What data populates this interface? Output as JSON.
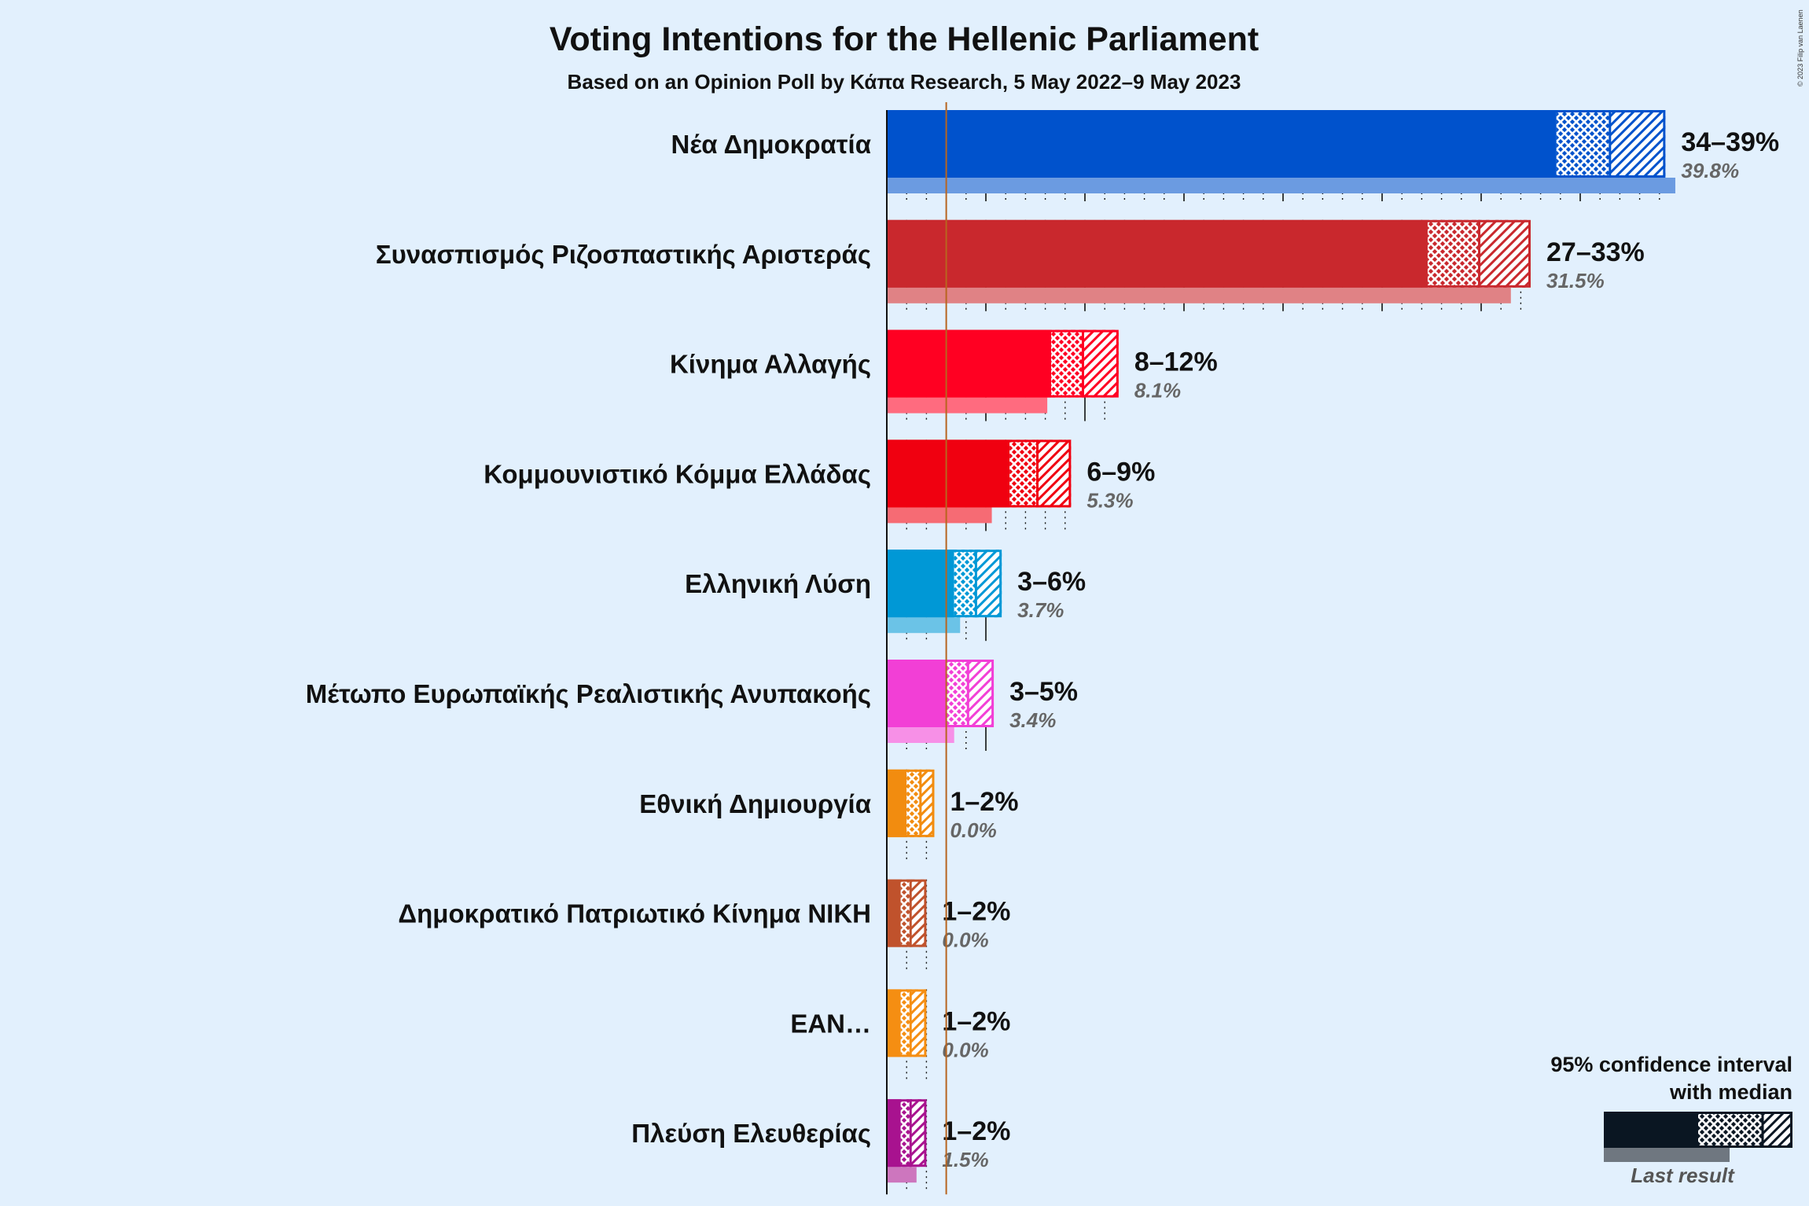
{
  "title": "Voting Intentions for the Hellenic Parliament",
  "subtitle": "Based on an Opinion Poll by Κάπα Research, 5 May 2022–9 May 2023",
  "copyright": "© 2023 Filip van Laenen",
  "legend": {
    "line1": "95% confidence interval",
    "line2": "with median",
    "last_result": "Last result",
    "color": "#0a1622"
  },
  "chart_data": {
    "type": "bar",
    "orientation": "horizontal",
    "threshold": 3,
    "xlim": [
      0,
      40
    ],
    "categories": [
      "Νέα Δημοκρατία",
      "Συνασπισμός Ριζοσπαστικής Αριστεράς",
      "Κίνημα Αλλαγής",
      "Κομμουνιστικό Κόμμα Ελλάδας",
      "Ελληνική Λύση",
      "Μέτωπο Ευρωπαϊκής Ρεαλιστικής Ανυπακοής",
      "Εθνική Δημιουργία",
      "Δημοκρατικό Πατριωτικό Κίνημα ΝΙΚΗ",
      "ΕΑΝ…",
      "Πλεύση Ελευθερίας"
    ],
    "series": [
      {
        "name": "Νέα Δημοκρατία",
        "color": "#0052cc",
        "ci_low": 33.8,
        "median": 36.5,
        "ci_high": 39.3,
        "range_label": "34–39%",
        "last_result": 39.8,
        "last_label": "39.8%"
      },
      {
        "name": "Συνασπισμός Ριζοσπαστικής Αριστεράς",
        "color": "#c9282d",
        "ci_low": 27.3,
        "median": 29.9,
        "ci_high": 32.5,
        "range_label": "27–33%",
        "last_result": 31.5,
        "last_label": "31.5%"
      },
      {
        "name": "Κίνημα Αλλαγής",
        "color": "#ff0022",
        "ci_low": 8.3,
        "median": 9.9,
        "ci_high": 11.7,
        "range_label": "8–12%",
        "last_result": 8.1,
        "last_label": "8.1%"
      },
      {
        "name": "Κομμουνιστικό Κόμμα Ελλάδας",
        "color": "#f00010",
        "ci_low": 6.2,
        "median": 7.6,
        "ci_high": 9.3,
        "range_label": "6–9%",
        "last_result": 5.3,
        "last_label": "5.3%"
      },
      {
        "name": "Ελληνική Λύση",
        "color": "#0098d6",
        "ci_low": 3.4,
        "median": 4.5,
        "ci_high": 5.8,
        "range_label": "3–6%",
        "last_result": 3.7,
        "last_label": "3.7%"
      },
      {
        "name": "Μέτωπο Ευρωπαϊκής Ρεαλιστικής Ανυπακοής",
        "color": "#f23fd6",
        "ci_low": 3.0,
        "median": 4.1,
        "ci_high": 5.4,
        "range_label": "3–5%",
        "last_result": 3.4,
        "last_label": "3.4%"
      },
      {
        "name": "Εθνική Δημιουργία",
        "color": "#f28c0f",
        "ci_low": 1.0,
        "median": 1.7,
        "ci_high": 2.4,
        "range_label": "1–2%",
        "last_result": 0.0,
        "last_label": "0.0%"
      },
      {
        "name": "Δημοκρατικό Πατριωτικό Κίνημα ΝΙΚΗ",
        "color": "#c0522c",
        "ci_low": 0.7,
        "median": 1.2,
        "ci_high": 2.0,
        "range_label": "1–2%",
        "last_result": 0.0,
        "last_label": "0.0%"
      },
      {
        "name": "ΕΑΝ…",
        "color": "#f58e12",
        "ci_low": 0.7,
        "median": 1.2,
        "ci_high": 2.0,
        "range_label": "1–2%",
        "last_result": 0.0,
        "last_label": "0.0%"
      },
      {
        "name": "Πλεύση Ελευθερίας",
        "color": "#a8128f",
        "ci_low": 0.7,
        "median": 1.2,
        "ci_high": 2.0,
        "range_label": "1–2%",
        "last_result": 1.5,
        "last_label": "1.5%"
      }
    ]
  }
}
